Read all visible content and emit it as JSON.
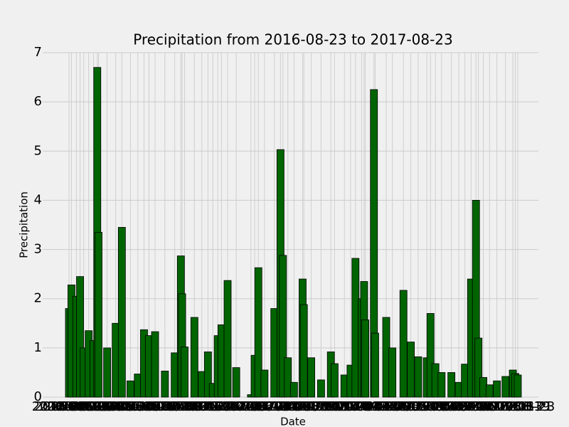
{
  "chart_data": {
    "type": "bar",
    "title": "Precipitation from 2016-08-23 to 2017-08-23",
    "x_label": "Date",
    "y_label": "Precipitation",
    "color": "#006400",
    "edgecolor": "#000000",
    "grid": true,
    "categories": [
      "2016-08-23",
      "2016-08-25",
      "2016-08-29",
      "2016-09-01",
      "2016-09-04",
      "2016-09-08",
      "2016-09-12",
      "2016-09-15",
      "2016-09-16",
      "2016-09-23",
      "2016-09-30",
      "2016-10-05",
      "2016-10-12",
      "2016-10-18",
      "2016-10-23",
      "2016-10-27",
      "2016-11-01",
      "2016-11-09",
      "2016-11-17",
      "2016-11-22",
      "2016-11-23",
      "2016-11-25",
      "2016-12-03",
      "2016-12-09",
      "2016-12-14",
      "2016-12-18",
      "2016-12-22",
      "2016-12-25",
      "2016-12-30",
      "2017-01-06",
      "2017-01-18",
      "2017-01-21",
      "2017-01-24",
      "2017-01-29",
      "2017-02-06",
      "2017-02-11",
      "2017-02-13",
      "2017-02-17",
      "2017-02-22",
      "2017-03-01",
      "2017-03-02",
      "2017-03-08",
      "2017-03-16",
      "2017-03-24",
      "2017-03-27",
      "2017-04-04",
      "2017-04-09",
      "2017-04-13",
      "2017-04-18",
      "2017-04-20",
      "2017-04-21",
      "2017-04-28",
      "2017-04-29",
      "2017-05-08",
      "2017-05-13",
      "2017-05-22",
      "2017-05-28",
      "2017-06-03",
      "2017-06-10",
      "2017-06-13",
      "2017-06-17",
      "2017-06-22",
      "2017-06-30",
      "2017-07-06",
      "2017-07-11",
      "2017-07-16",
      "2017-07-20",
      "2017-07-22",
      "2017-07-26",
      "2017-07-31",
      "2017-08-06",
      "2017-08-13",
      "2017-08-19",
      "2017-08-21",
      "2017-08-23"
    ],
    "values": [
      1.8,
      2.28,
      2.05,
      2.45,
      1.0,
      1.35,
      1.15,
      6.7,
      3.35,
      1.0,
      1.5,
      3.45,
      0.33,
      0.47,
      1.37,
      1.25,
      1.33,
      0.53,
      0.9,
      2.87,
      2.1,
      1.02,
      1.62,
      0.52,
      0.92,
      0.28,
      1.25,
      1.47,
      2.37,
      0.6,
      0.05,
      0.85,
      2.63,
      0.55,
      1.8,
      5.03,
      2.88,
      0.8,
      0.3,
      2.4,
      1.88,
      0.8,
      0.35,
      0.92,
      0.68,
      0.45,
      0.65,
      2.82,
      2.0,
      2.35,
      1.57,
      6.25,
      1.3,
      1.62,
      1.0,
      2.17,
      1.12,
      0.82,
      0.8,
      1.7,
      0.68,
      0.5,
      0.5,
      0.3,
      0.67,
      2.4,
      4.0,
      1.2,
      0.4,
      0.25,
      0.33,
      0.42,
      0.55,
      0.48,
      0.45
    ],
    "ylim": [
      0,
      7
    ],
    "yticks": [
      0,
      1,
      2,
      3,
      4,
      5,
      6,
      7
    ]
  }
}
